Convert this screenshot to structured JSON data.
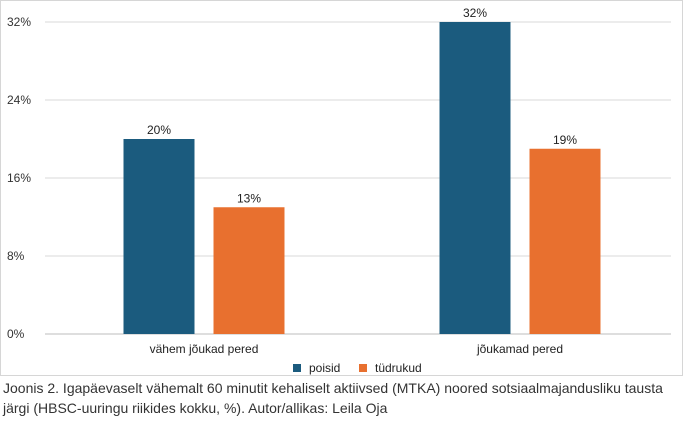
{
  "chart_data": {
    "type": "bar",
    "categories": [
      "vähem jõukad pered",
      "jõukamad pered"
    ],
    "series": [
      {
        "name": "poisid",
        "color": "#1b5b7e",
        "values": [
          20,
          32
        ]
      },
      {
        "name": "tüdrukud",
        "color": "#e8702f",
        "values": [
          13,
          19
        ]
      }
    ],
    "data_labels": [
      [
        "20%",
        "32%"
      ],
      [
        "13%",
        "19%"
      ]
    ],
    "ylim": [
      0,
      32
    ],
    "yticks": [
      0,
      8,
      16,
      24,
      32
    ],
    "ytick_labels": [
      "0%",
      "8%",
      "16%",
      "24%",
      "32%"
    ],
    "grid": true,
    "legend_position": "bottom"
  },
  "caption": "Joonis 2. Igapäevaselt vähemalt 60 minutit kehaliselt aktiivsed (MTKA) noored sotsiaalmajandusliku tausta järgi (HBSC-uuringu riikides kokku, %). Autor/allikas: Leila Oja"
}
